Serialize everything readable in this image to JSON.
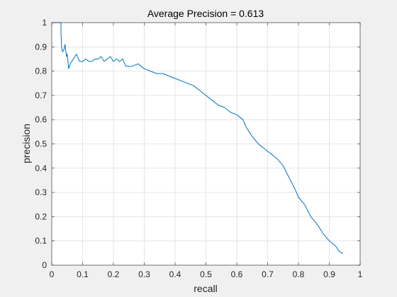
{
  "chart_data": {
    "type": "line",
    "title": "Average Precision = 0.613",
    "xlabel": "recall",
    "ylabel": "precision",
    "xlim": [
      0,
      1
    ],
    "ylim": [
      0,
      1
    ],
    "xticks": [
      "0",
      "0.1",
      "0.2",
      "0.3",
      "0.4",
      "0.5",
      "0.6",
      "0.7",
      "0.8",
      "0.9",
      "1"
    ],
    "yticks": [
      "0",
      "0.1",
      "0.2",
      "0.3",
      "0.4",
      "0.5",
      "0.6",
      "0.7",
      "0.8",
      "0.9",
      "1"
    ],
    "grid": true,
    "series_color": "#0072BD",
    "x": [
      0.0,
      0.03,
      0.03,
      0.032,
      0.035,
      0.04,
      0.043,
      0.048,
      0.05,
      0.055,
      0.06,
      0.065,
      0.07,
      0.08,
      0.09,
      0.1,
      0.11,
      0.12,
      0.13,
      0.14,
      0.15,
      0.16,
      0.17,
      0.18,
      0.19,
      0.2,
      0.21,
      0.22,
      0.23,
      0.24,
      0.26,
      0.28,
      0.3,
      0.32,
      0.34,
      0.36,
      0.38,
      0.4,
      0.42,
      0.44,
      0.46,
      0.48,
      0.5,
      0.52,
      0.54,
      0.56,
      0.58,
      0.6,
      0.62,
      0.63,
      0.65,
      0.67,
      0.69,
      0.71,
      0.73,
      0.75,
      0.77,
      0.79,
      0.8,
      0.82,
      0.84,
      0.86,
      0.88,
      0.9,
      0.91,
      0.92,
      0.93,
      0.94,
      0.945
    ],
    "y": [
      1.0,
      1.0,
      0.96,
      0.9,
      0.88,
      0.89,
      0.91,
      0.86,
      0.87,
      0.81,
      0.83,
      0.84,
      0.85,
      0.87,
      0.84,
      0.84,
      0.85,
      0.84,
      0.84,
      0.85,
      0.85,
      0.86,
      0.84,
      0.85,
      0.86,
      0.84,
      0.85,
      0.84,
      0.85,
      0.82,
      0.82,
      0.83,
      0.81,
      0.8,
      0.79,
      0.79,
      0.78,
      0.77,
      0.76,
      0.75,
      0.74,
      0.72,
      0.7,
      0.68,
      0.66,
      0.65,
      0.63,
      0.62,
      0.6,
      0.57,
      0.53,
      0.5,
      0.48,
      0.46,
      0.44,
      0.41,
      0.36,
      0.31,
      0.28,
      0.25,
      0.2,
      0.17,
      0.13,
      0.1,
      0.09,
      0.08,
      0.06,
      0.05,
      0.05
    ]
  }
}
